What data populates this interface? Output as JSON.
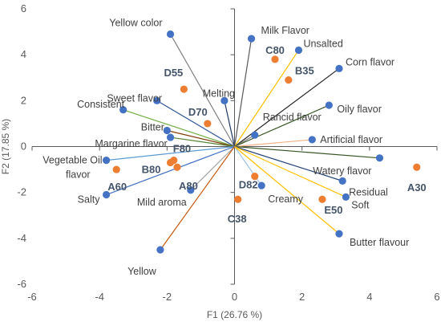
{
  "chart_data": {
    "type": "scatter",
    "title": "",
    "xlabel": "F1 (26.76 %)",
    "ylabel": "F2 (17.85 %)",
    "xlim": [
      -6,
      6
    ],
    "ylim": [
      -6,
      6
    ],
    "xticks": [
      "-6",
      "-4",
      "-2",
      "0",
      "2",
      "4",
      "6"
    ],
    "yticks": [
      "-6",
      "-4",
      "-2",
      "0",
      "2",
      "4",
      "6"
    ],
    "grid": false,
    "legend": "none",
    "colors": {
      "variables": "#4472C4",
      "observations": "#ED7D31",
      "axis": "#595959"
    },
    "variables": [
      {
        "label": "Yellow color",
        "x": -1.9,
        "y": 4.9,
        "line": "#7F7F7F"
      },
      {
        "label": "Milk Flavor",
        "x": 0.5,
        "y": 4.7,
        "line": "#595959"
      },
      {
        "label": "Unsalted",
        "x": 1.9,
        "y": 4.2,
        "line": "#FFC000"
      },
      {
        "label": "Corn flavor",
        "x": 3.1,
        "y": 3.4,
        "line": "#262626"
      },
      {
        "label": "Sweet flavor",
        "x": -2.3,
        "y": 2.0,
        "line": "#2F5597"
      },
      {
        "label": "Melting",
        "x": -0.3,
        "y": 2.0,
        "line": "#203864"
      },
      {
        "label": "Consistent",
        "x": -3.3,
        "y": 1.6,
        "line": "#70AD47"
      },
      {
        "label": "Rancid flavor",
        "x": 0.6,
        "y": 0.5,
        "line": "#7F7F7F"
      },
      {
        "label": "Oily flavor",
        "x": 2.8,
        "y": 1.8,
        "line": "#375623"
      },
      {
        "label": "Bitter",
        "x": -2.0,
        "y": 0.7,
        "line": "#843C0C"
      },
      {
        "label": "Margarine flavor",
        "x": -1.9,
        "y": 0.4,
        "line": "#548235"
      },
      {
        "label": "Artificial flavor",
        "x": 2.3,
        "y": 0.3,
        "line": "#F4B183"
      },
      {
        "label": "Vegetable Oil flavor",
        "x": -3.8,
        "y": -0.6,
        "line": "#5B9BD5"
      },
      {
        "label": "Watery flavor",
        "x": 4.3,
        "y": -0.5,
        "line": "#375623"
      },
      {
        "label": "Residual",
        "x": 3.2,
        "y": -1.5,
        "line": "#264478"
      },
      {
        "label": "Mild aroma",
        "x": -1.3,
        "y": -1.9,
        "line": "#A5A5A5"
      },
      {
        "label": "Creamy",
        "x": 0.8,
        "y": -1.7,
        "line": "#9DC3E6"
      },
      {
        "label": "Soft",
        "x": 3.3,
        "y": -2.2,
        "line": "#FFC000"
      },
      {
        "label": "Salty",
        "x": -3.8,
        "y": -2.1,
        "line": "#4472C4"
      },
      {
        "label": "Butter flavour",
        "x": 3.1,
        "y": -3.8,
        "line": "#FFC000"
      },
      {
        "label": "Yellow",
        "x": -2.2,
        "y": -4.5,
        "line": "#C55A11"
      }
    ],
    "observations": [
      {
        "label": "C80",
        "x": 1.2,
        "y": 3.8
      },
      {
        "label": "B35",
        "x": 1.6,
        "y": 2.9
      },
      {
        "label": "D55",
        "x": -1.5,
        "y": 2.5
      },
      {
        "label": "D70",
        "x": -0.8,
        "y": 1.0
      },
      {
        "label": "F80",
        "x": -1.8,
        "y": -0.6
      },
      {
        "label": "B80",
        "x": -1.9,
        "y": -0.7
      },
      {
        "label": "A80",
        "x": -1.7,
        "y": -0.9
      },
      {
        "label": "A60",
        "x": -3.5,
        "y": -1.0
      },
      {
        "label": "D82",
        "x": 0.6,
        "y": -1.3
      },
      {
        "label": "C38",
        "x": 0.1,
        "y": -2.3
      },
      {
        "label": "E50",
        "x": 2.6,
        "y": -2.3
      },
      {
        "label": "A30",
        "x": 5.4,
        "y": -0.9
      }
    ]
  }
}
